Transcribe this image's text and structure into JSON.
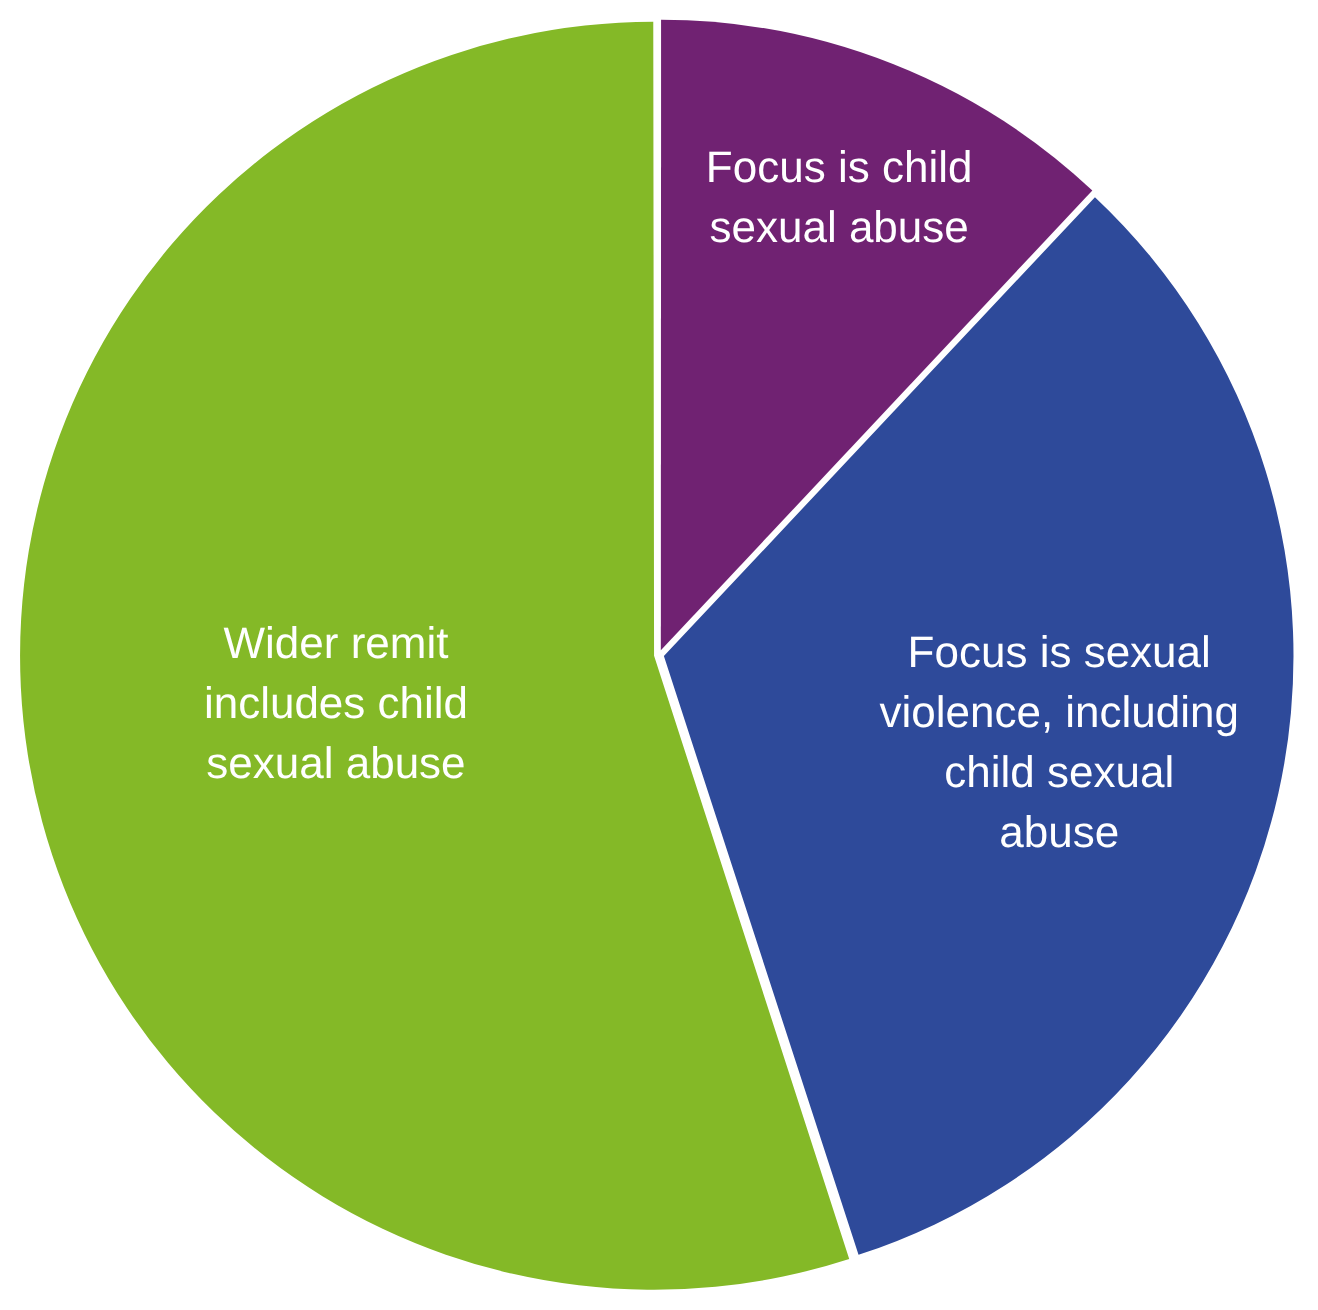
{
  "chart_data": {
    "type": "pie",
    "categories": [
      "Focus is child sexual abuse",
      "Focus is sexual violence, including child sexual abuse",
      "Wider remit includes child sexual abuse"
    ],
    "values": [
      12,
      33,
      55
    ],
    "colors": [
      "#702272",
      "#2e4a9a",
      "#84b927"
    ]
  }
}
